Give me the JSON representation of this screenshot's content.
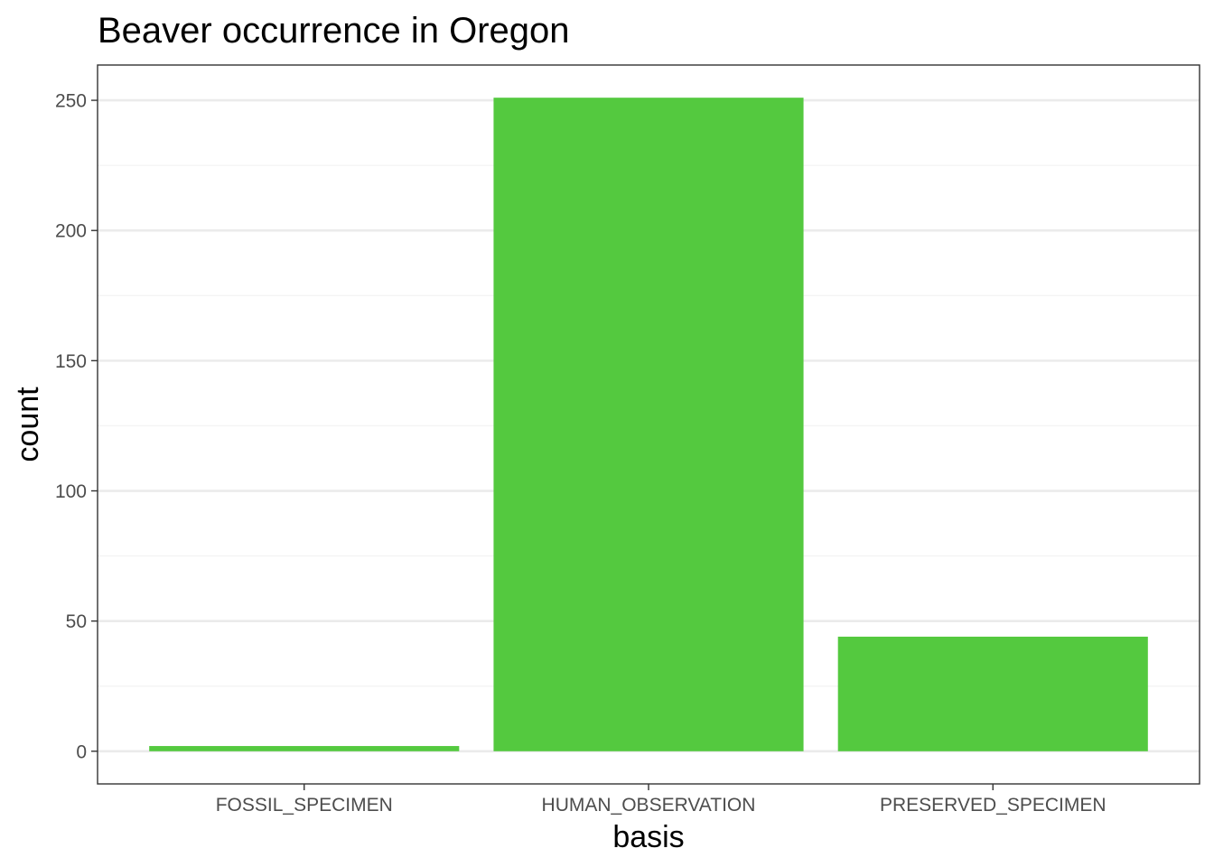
{
  "chart_data": {
    "type": "bar",
    "title": "Beaver occurrence in Oregon",
    "xlabel": "basis",
    "ylabel": "count",
    "categories": [
      "FOSSIL_SPECIMEN",
      "HUMAN_OBSERVATION",
      "PRESERVED_SPECIMEN"
    ],
    "values": [
      2,
      251,
      44
    ],
    "ylim": [
      -12.55,
      263.55
    ],
    "y_ticks": [
      0,
      50,
      100,
      150,
      200,
      250
    ],
    "y_tick_labels": [
      "0",
      "50",
      "100",
      "150",
      "200",
      "250"
    ],
    "grid": true,
    "legend": "none",
    "colors": {
      "bar": "#54c93f",
      "grid_major": "#ebebeb",
      "grid_minor": "#f4f4f4",
      "panel_border": "#333333",
      "tick_text": "#4d4d4d"
    }
  }
}
